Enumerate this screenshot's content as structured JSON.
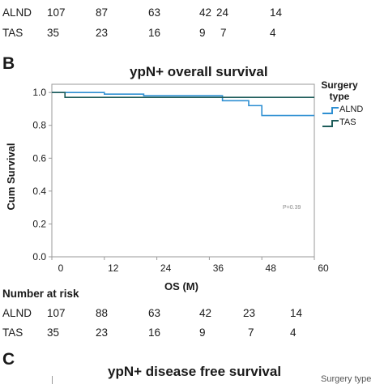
{
  "top_risk_table": {
    "rows": [
      {
        "group": "ALND",
        "values": [
          "107",
          "87",
          "63",
          "42",
          "24",
          "14"
        ]
      },
      {
        "group": "TAS",
        "values": [
          "35",
          "23",
          "16",
          "9",
          "7",
          "4"
        ]
      }
    ]
  },
  "panel_b": {
    "letter": "B",
    "risk_heading": "Number at risk",
    "risk_rows": [
      {
        "group": "ALND",
        "values": [
          "107",
          "88",
          "63",
          "42",
          "23",
          "14"
        ]
      },
      {
        "group": "TAS",
        "values": [
          "35",
          "23",
          "16",
          "9",
          "7",
          "4"
        ]
      }
    ]
  },
  "panel_c": {
    "letter": "C",
    "title": "ypN+ disease free survival",
    "legend_title": "Surgery type"
  },
  "colors": {
    "alnd": "#2e8fd2",
    "tas": "#1d5c5a",
    "axis": "#9a9a9a"
  },
  "chart_data": {
    "type": "line",
    "title": "ypN+ overall survival",
    "xlabel": "OS (M)",
    "ylabel": "Cum Survival",
    "xlim": [
      0,
      60
    ],
    "ylim": [
      0,
      1.05
    ],
    "xticks": [
      "0",
      "12",
      "24",
      "36",
      "48",
      "60"
    ],
    "yticks": [
      "0.0",
      "0.2",
      "0.4",
      "0.6",
      "0.8",
      "1.0"
    ],
    "legend_title": "Surgery type",
    "legend_position": "right",
    "annotation": "P=0.39",
    "series": [
      {
        "name": "ALND",
        "color": "#2e8fd2",
        "x": [
          0,
          10,
          12,
          19,
          21,
          36,
          39,
          45,
          48,
          60
        ],
        "y": [
          1.0,
          1.0,
          0.99,
          0.99,
          0.98,
          0.98,
          0.95,
          0.92,
          0.86,
          0.86
        ]
      },
      {
        "name": "TAS",
        "color": "#1d5c5a",
        "x": [
          0,
          3,
          19,
          20,
          60
        ],
        "y": [
          1.0,
          0.97,
          0.97,
          0.97,
          0.97
        ]
      }
    ]
  }
}
